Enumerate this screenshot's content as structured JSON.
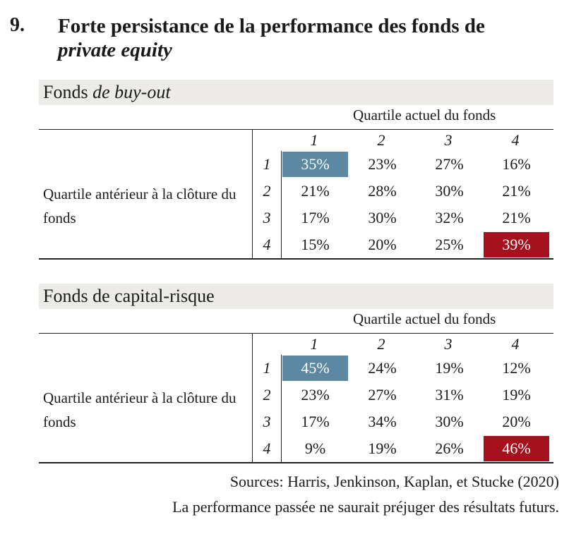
{
  "heading": {
    "number": "9.",
    "title_line1": "Forte persistance de la performance des fonds de",
    "title_line2": "private equity"
  },
  "colors": {
    "highlight_top": "#5d88a1",
    "highlight_bottom": "#a5111d"
  },
  "tables": [
    {
      "title_plain": "Fonds ",
      "title_italic": "de buy-out",
      "column_group": "Quartile actuel du fonds",
      "row_group": "Quartile antérieur à la clôture du fonds",
      "col_headers": [
        "1",
        "2",
        "3",
        "4"
      ],
      "row_headers": [
        "1",
        "2",
        "3",
        "4"
      ],
      "rows": [
        [
          "35%",
          "23%",
          "27%",
          "16%"
        ],
        [
          "21%",
          "28%",
          "30%",
          "21%"
        ],
        [
          "17%",
          "30%",
          "32%",
          "21%"
        ],
        [
          "15%",
          "20%",
          "25%",
          "39%"
        ]
      ]
    },
    {
      "title_plain": "Fonds de capital-risque",
      "title_italic": "",
      "column_group": "Quartile actuel du fonds",
      "row_group": "Quartile antérieur à la clôture du fonds",
      "col_headers": [
        "1",
        "2",
        "3",
        "4"
      ],
      "row_headers": [
        "1",
        "2",
        "3",
        "4"
      ],
      "rows": [
        [
          "45%",
          "24%",
          "19%",
          "12%"
        ],
        [
          "23%",
          "27%",
          "31%",
          "19%"
        ],
        [
          "17%",
          "34%",
          "30%",
          "20%"
        ],
        [
          "9%",
          "19%",
          "26%",
          "46%"
        ]
      ]
    }
  ],
  "footer": {
    "sources": "Sources:  Harris, Jenkinson, Kaplan, et Stucke (2020)",
    "disclaimer": "La performance passée ne saurait préjuger des résultats futurs."
  }
}
